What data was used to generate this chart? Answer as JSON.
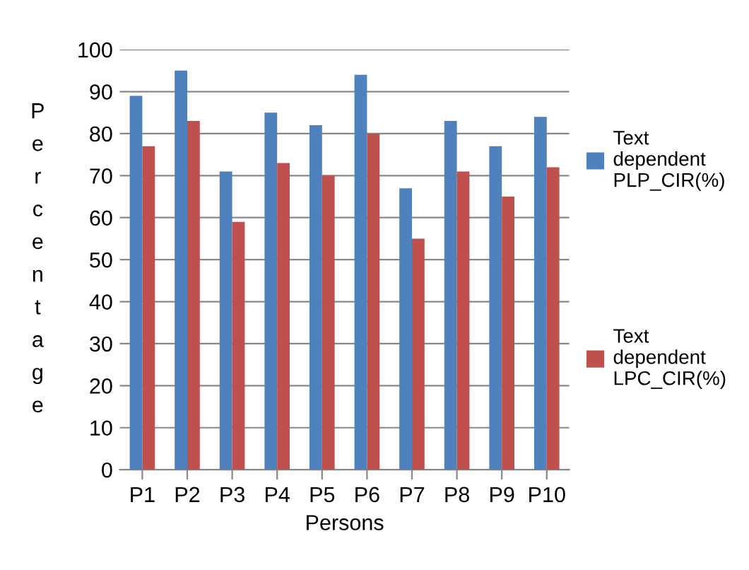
{
  "chart_data": {
    "type": "bar",
    "xlabel": "Persons",
    "ylabel": "Percentage",
    "categories": [
      "P1",
      "P2",
      "P3",
      "P4",
      "P5",
      "P6",
      "P7",
      "P8",
      "P9",
      "P10"
    ],
    "series": [
      {
        "name": "Text dependent PLP_CIR(%)",
        "color": "#4f81bd",
        "values": [
          89,
          95,
          71,
          85,
          82,
          94,
          67,
          83,
          77,
          84
        ]
      },
      {
        "name": "Text dependent LPC_CIR(%)",
        "color": "#c0504d",
        "values": [
          77,
          83,
          59,
          73,
          70,
          80,
          55,
          71,
          65,
          72
        ]
      }
    ],
    "ylim": [
      0,
      100
    ],
    "yticks": [
      0,
      10,
      20,
      30,
      40,
      50,
      60,
      70,
      80,
      90,
      100
    ],
    "grid": "y",
    "legend": "right"
  }
}
